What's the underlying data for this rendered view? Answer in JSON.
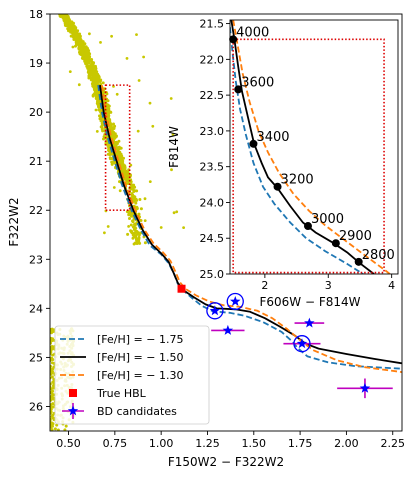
{
  "chart_data": {
    "main": {
      "type": "line",
      "xlabel": "F150W2 − F322W2",
      "ylabel": "F322W2",
      "xlim": [
        0.4,
        2.3
      ],
      "ylim": [
        26.5,
        18.0
      ],
      "y_inverted": true,
      "xticks": [
        0.5,
        0.75,
        1.0,
        1.25,
        1.5,
        1.75,
        2.0,
        2.25
      ],
      "xtick_labels": [
        "0.50",
        "0.75",
        "1.00",
        "1.25",
        "1.50",
        "1.75",
        "2.00",
        "2.25"
      ],
      "yticks": [
        18,
        19,
        20,
        21,
        22,
        23,
        24,
        25,
        26
      ],
      "ytick_labels": [
        "18",
        "19",
        "20",
        "21",
        "22",
        "23",
        "24",
        "25",
        "26"
      ],
      "legend_position": "lower-left",
      "series": [
        {
          "name": "[Fe/H] = − 1.75",
          "color": "#1f77b4",
          "style": "dashed",
          "points": [
            [
              0.66,
              19.45
            ],
            [
              0.68,
              20.0
            ],
            [
              0.71,
              20.5
            ],
            [
              0.75,
              21.0
            ],
            [
              0.79,
              21.5
            ],
            [
              0.84,
              22.0
            ],
            [
              0.89,
              22.4
            ],
            [
              0.94,
              22.72
            ],
            [
              1.0,
              22.9
            ],
            [
              1.04,
              23.08
            ],
            [
              1.07,
              23.3
            ],
            [
              1.09,
              23.5
            ],
            [
              1.12,
              23.64
            ],
            [
              1.17,
              23.8
            ],
            [
              1.22,
              23.95
            ],
            [
              1.28,
              24.06
            ],
            [
              1.37,
              24.09
            ],
            [
              1.45,
              24.15
            ],
            [
              1.55,
              24.28
            ],
            [
              1.65,
              24.48
            ],
            [
              1.7,
              24.65
            ],
            [
              1.74,
              24.82
            ],
            [
              1.79,
              24.98
            ],
            [
              1.9,
              25.1
            ],
            [
              2.05,
              25.18
            ],
            [
              2.3,
              25.23
            ]
          ]
        },
        {
          "name": "[Fe/H] = − 1.50",
          "color": "#000000",
          "style": "solid",
          "points": [
            [
              0.67,
              19.45
            ],
            [
              0.69,
              20.0
            ],
            [
              0.72,
              20.5
            ],
            [
              0.76,
              21.0
            ],
            [
              0.8,
              21.5
            ],
            [
              0.85,
              22.0
            ],
            [
              0.9,
              22.4
            ],
            [
              0.95,
              22.7
            ],
            [
              1.0,
              22.88
            ],
            [
              1.04,
              23.05
            ],
            [
              1.07,
              23.3
            ],
            [
              1.09,
              23.48
            ],
            [
              1.12,
              23.63
            ],
            [
              1.18,
              23.78
            ],
            [
              1.24,
              23.92
            ],
            [
              1.3,
              24.0
            ],
            [
              1.4,
              24.02
            ],
            [
              1.48,
              24.07
            ],
            [
              1.56,
              24.2
            ],
            [
              1.64,
              24.37
            ],
            [
              1.72,
              24.55
            ],
            [
              1.78,
              24.72
            ],
            [
              1.85,
              24.82
            ],
            [
              2.0,
              24.93
            ],
            [
              2.15,
              25.03
            ],
            [
              2.3,
              25.12
            ]
          ]
        },
        {
          "name": "[Fe/H] = − 1.30",
          "color": "#ff7f0e",
          "style": "dashed",
          "points": [
            [
              0.68,
              19.45
            ],
            [
              0.7,
              20.0
            ],
            [
              0.73,
              20.5
            ],
            [
              0.77,
              21.0
            ],
            [
              0.81,
              21.5
            ],
            [
              0.86,
              22.0
            ],
            [
              0.91,
              22.4
            ],
            [
              0.96,
              22.68
            ],
            [
              1.01,
              22.86
            ],
            [
              1.05,
              23.03
            ],
            [
              1.08,
              23.28
            ],
            [
              1.1,
              23.46
            ],
            [
              1.13,
              23.6
            ],
            [
              1.19,
              23.74
            ],
            [
              1.26,
              23.86
            ],
            [
              1.34,
              23.94
            ],
            [
              1.43,
              23.97
            ],
            [
              1.52,
              24.05
            ],
            [
              1.6,
              24.2
            ],
            [
              1.68,
              24.42
            ],
            [
              1.75,
              24.65
            ],
            [
              1.82,
              24.85
            ],
            [
              1.95,
              25.06
            ],
            [
              2.1,
              25.2
            ],
            [
              2.3,
              25.3
            ]
          ]
        }
      ],
      "true_hbl": {
        "name": "True HBL",
        "color": "#ff0000",
        "marker": "square",
        "point": [
          1.11,
          23.6
        ]
      },
      "bd_candidates": {
        "name": "BD candidates",
        "color": "#0000ff",
        "marker": "star",
        "errorbar_color": "#bf00bf",
        "points": [
          {
            "x": 1.29,
            "y": 24.05,
            "xerr": 0.0,
            "yerr": 0.0,
            "circled": true
          },
          {
            "x": 1.4,
            "y": 23.86,
            "xerr": 0.0,
            "yerr": 0.0,
            "circled": true
          },
          {
            "x": 1.36,
            "y": 24.45,
            "xerr": 0.09,
            "yerr": 0.0,
            "circled": false
          },
          {
            "x": 1.8,
            "y": 24.3,
            "xerr": 0.08,
            "yerr": 0.0,
            "circled": false
          },
          {
            "x": 1.76,
            "y": 24.72,
            "xerr": 0.1,
            "yerr": 0.0,
            "circled": true
          },
          {
            "x": 2.1,
            "y": 25.63,
            "xerr": 0.15,
            "yerr": 0.2,
            "circled": false
          }
        ]
      },
      "observed_stars": {
        "color": "#c8c800",
        "main_sequence_ridge": [
          [
            0.47,
            18.0
          ],
          [
            0.52,
            18.3
          ],
          [
            0.56,
            18.6
          ],
          [
            0.6,
            18.9
          ],
          [
            0.63,
            19.2
          ],
          [
            0.66,
            19.5
          ],
          [
            0.68,
            19.8
          ],
          [
            0.7,
            20.1
          ],
          [
            0.72,
            20.4
          ],
          [
            0.74,
            20.7
          ],
          [
            0.77,
            21.0
          ],
          [
            0.8,
            21.3
          ],
          [
            0.83,
            21.6
          ]
        ],
        "lower_left_cluster_top": 24.4
      }
    },
    "inset": {
      "type": "line",
      "xlabel": "F606W − F814W",
      "ylabel": "F814W",
      "xlim": [
        1.45,
        4.1
      ],
      "ylim": [
        25.0,
        21.45
      ],
      "y_inverted": true,
      "xticks": [
        2,
        3,
        4
      ],
      "xtick_labels": [
        "2",
        "3",
        "4"
      ],
      "yticks": [
        21.5,
        22.0,
        22.5,
        23.0,
        23.5,
        24.0,
        24.5,
        25.0
      ],
      "ytick_labels": [
        "21.5",
        "22.0",
        "22.5",
        "23.0",
        "23.5",
        "24.0",
        "24.5",
        "25.0"
      ],
      "black_curve": [
        [
          1.47,
          21.45
        ],
        [
          1.52,
          21.72
        ],
        [
          1.58,
          22.1
        ],
        [
          1.64,
          22.45
        ],
        [
          1.73,
          22.8
        ],
        [
          1.83,
          23.18
        ],
        [
          1.95,
          23.45
        ],
        [
          2.05,
          23.65
        ],
        [
          2.2,
          23.8
        ],
        [
          2.4,
          24.05
        ],
        [
          2.6,
          24.28
        ],
        [
          2.8,
          24.42
        ],
        [
          3.05,
          24.55
        ],
        [
          3.3,
          24.7
        ],
        [
          3.5,
          24.85
        ],
        [
          3.72,
          25.0
        ]
      ],
      "blue_curve": [
        [
          1.45,
          21.55
        ],
        [
          1.49,
          21.9
        ],
        [
          1.54,
          22.3
        ],
        [
          1.61,
          22.7
        ],
        [
          1.7,
          23.05
        ],
        [
          1.82,
          23.45
        ],
        [
          1.97,
          23.78
        ],
        [
          2.15,
          24.02
        ],
        [
          2.4,
          24.28
        ],
        [
          2.65,
          24.5
        ],
        [
          2.95,
          24.68
        ],
        [
          3.3,
          24.86
        ],
        [
          3.55,
          25.0
        ]
      ],
      "orange_curve": [
        [
          1.5,
          21.45
        ],
        [
          1.57,
          21.8
        ],
        [
          1.65,
          22.2
        ],
        [
          1.76,
          22.6
        ],
        [
          1.9,
          23.0
        ],
        [
          2.05,
          23.3
        ],
        [
          2.22,
          23.58
        ],
        [
          2.45,
          23.88
        ],
        [
          2.7,
          24.12
        ],
        [
          2.95,
          24.32
        ],
        [
          3.25,
          24.52
        ],
        [
          3.55,
          24.72
        ],
        [
          3.9,
          24.95
        ],
        [
          3.97,
          25.0
        ]
      ],
      "temperature_points": [
        {
          "label": "4000",
          "x": 1.5,
          "y": 21.72
        },
        {
          "label": "3600",
          "x": 1.58,
          "y": 22.42
        },
        {
          "label": "3400",
          "x": 1.82,
          "y": 23.18
        },
        {
          "label": "3200",
          "x": 2.2,
          "y": 23.78
        },
        {
          "label": "3000",
          "x": 2.68,
          "y": 24.33
        },
        {
          "label": "2900",
          "x": 3.12,
          "y": 24.57
        },
        {
          "label": "2800",
          "x": 3.48,
          "y": 24.83
        }
      ],
      "box_color": "#dd0000"
    },
    "zoom_box": {
      "x": [
        0.7,
        0.83
      ],
      "y": [
        19.45,
        22.0
      ],
      "color": "#dd0000"
    }
  }
}
